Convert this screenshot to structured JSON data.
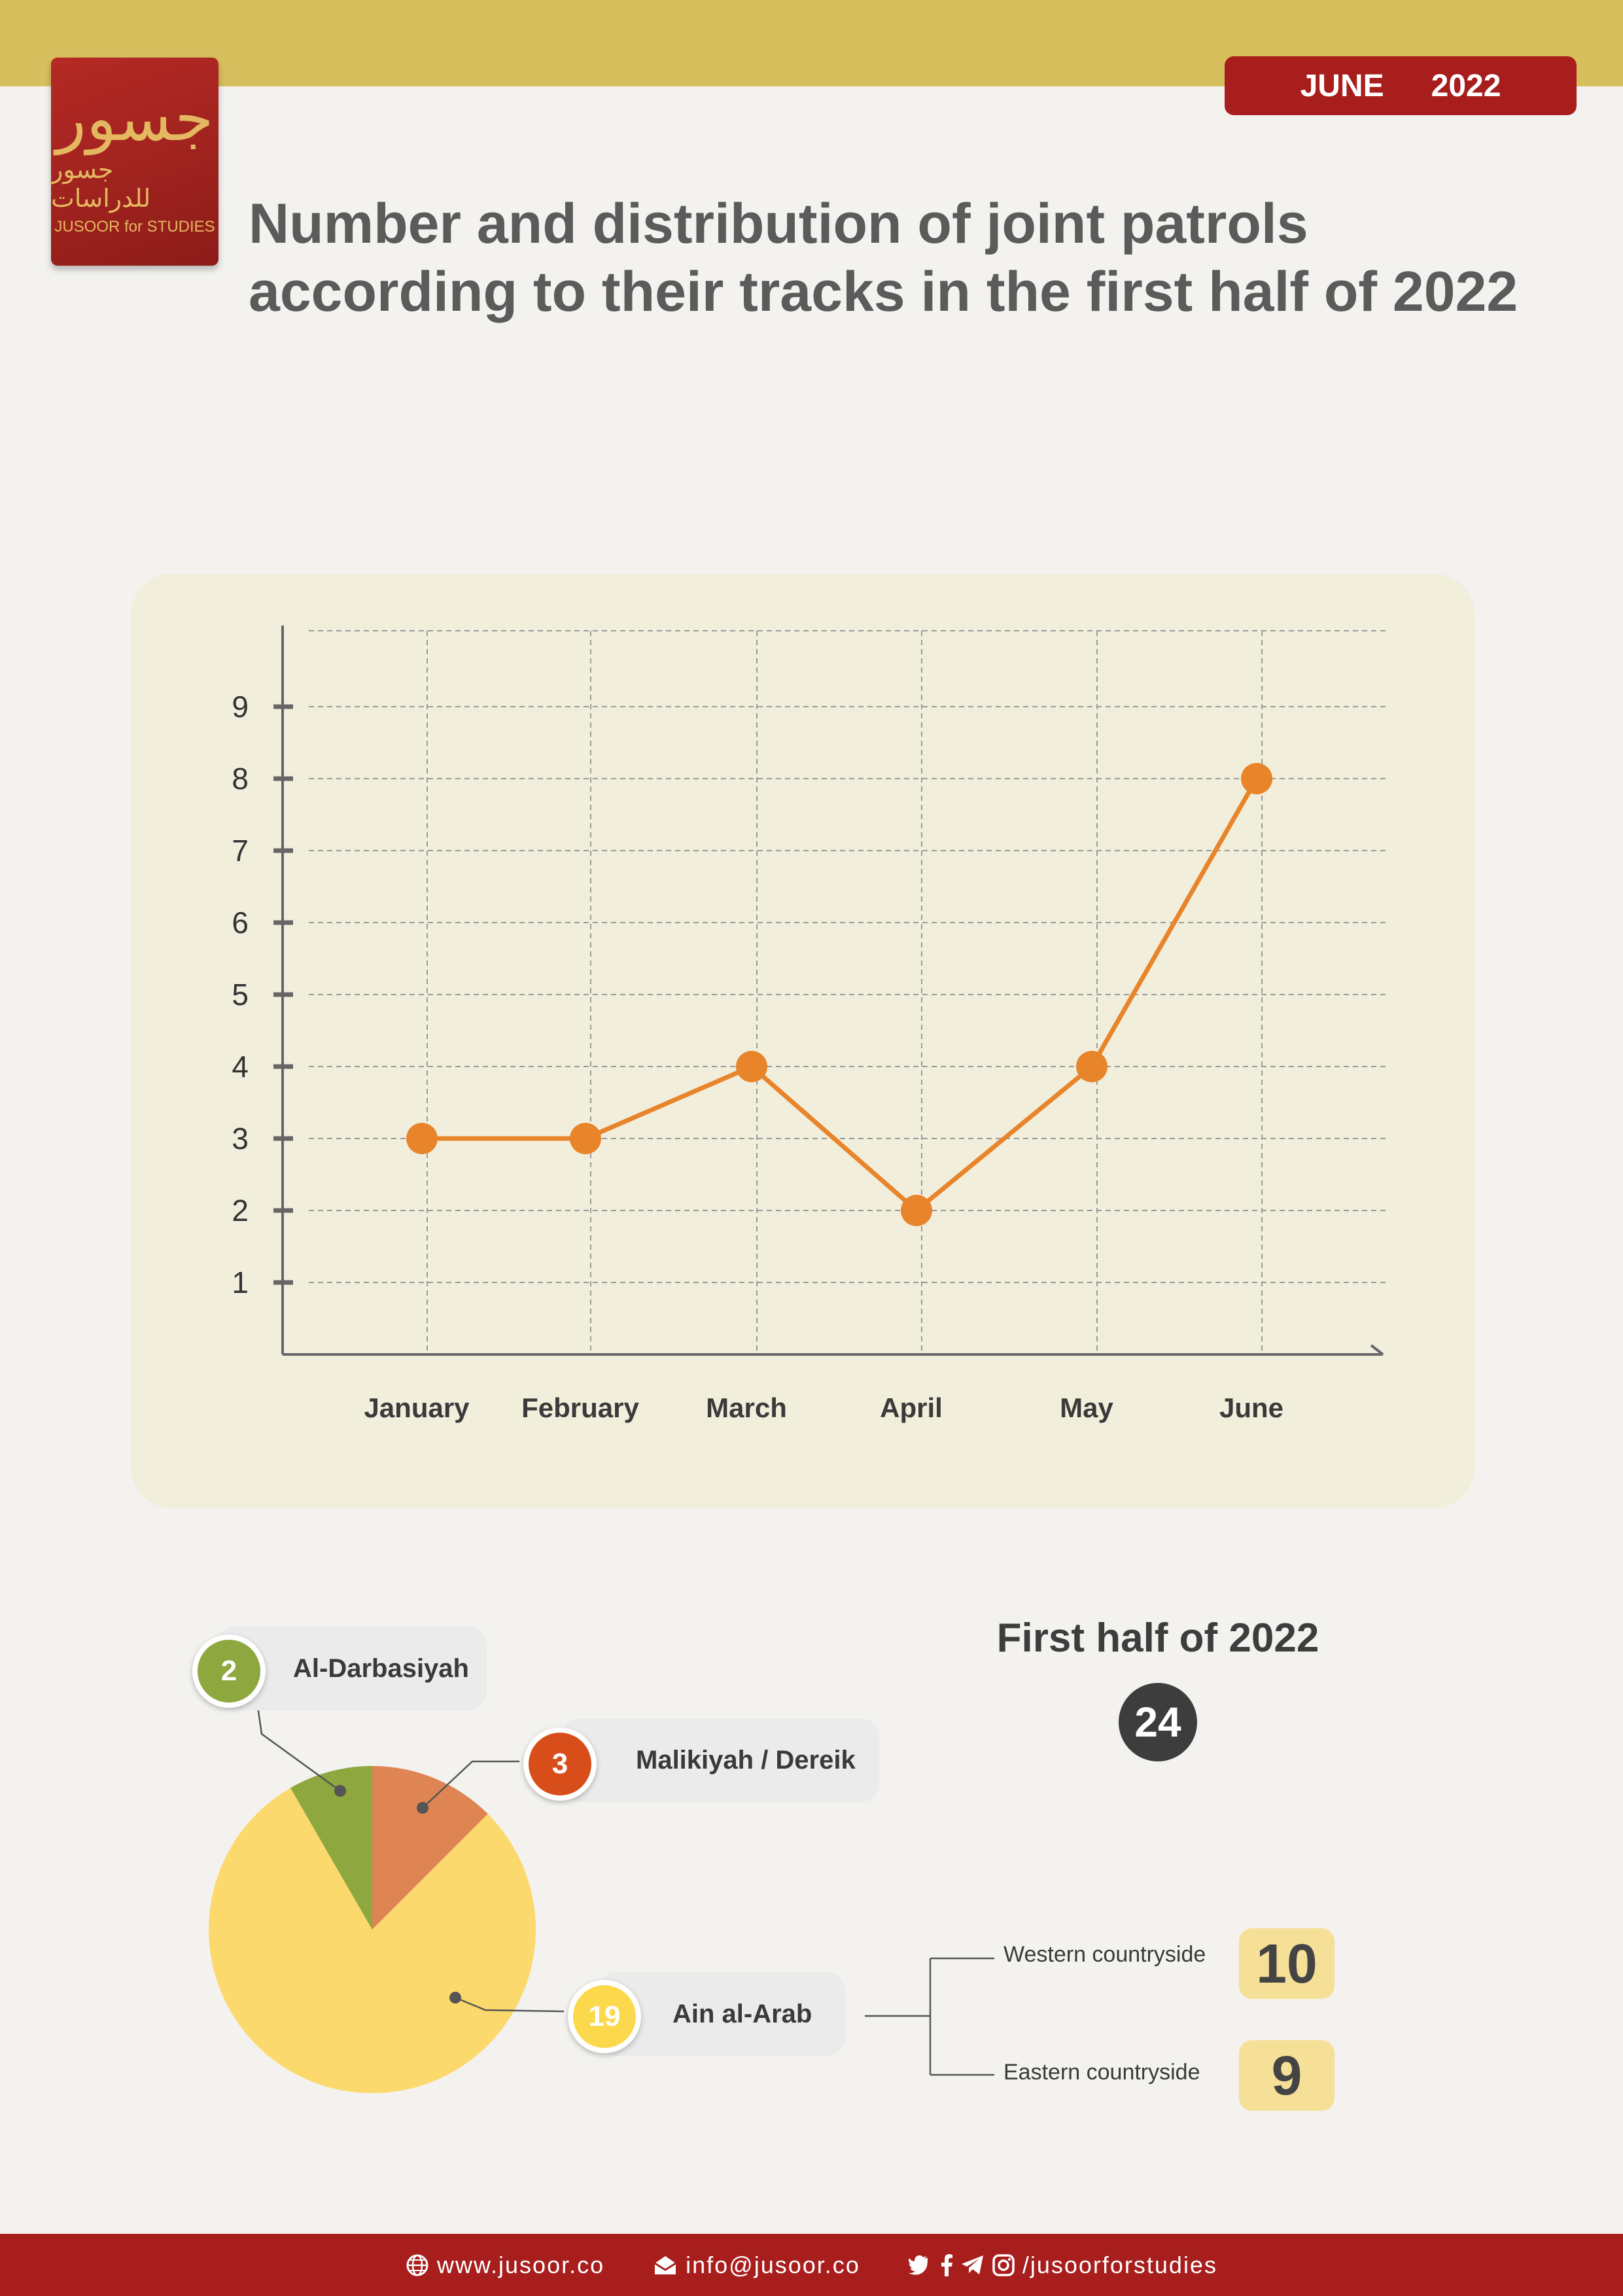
{
  "header": {
    "month": "JUNE",
    "year": "2022",
    "colors": {
      "band": "#d8bf5e",
      "accent": "#a81e1d"
    }
  },
  "logo": {
    "arabic": "جسور",
    "arabic_sub": "جسور للدراسات",
    "english": "JUSOOR for STUDIES"
  },
  "title": "Number and distribution of joint patrols according to their tracks in the first half of 2022",
  "chart_data": [
    {
      "type": "line",
      "categories": [
        "January",
        "February",
        "March",
        "April",
        "May",
        "June"
      ],
      "series": [
        {
          "values": [
            3,
            3,
            4,
            2,
            4,
            8
          ]
        }
      ],
      "yticks": [
        "1",
        "2",
        "3",
        "4",
        "5",
        "6",
        "7",
        "8",
        "9"
      ],
      "ylim": [
        0,
        10
      ],
      "grid": true,
      "color": "#e8842a"
    },
    {
      "type": "pie",
      "slices": [
        {
          "name": "Al-Darbasiyah",
          "value": 2,
          "color": "#8ea73f"
        },
        {
          "name": "Malikiyah / Dereik",
          "value": 3,
          "color": "#df8453"
        },
        {
          "name": "Ain al-Arab",
          "value": 19,
          "color": "#fcd96c"
        }
      ],
      "badge_colors": [
        "#8ea73f",
        "#d84e1a",
        "#fcd94c"
      ]
    }
  ],
  "summary": {
    "title": "First half of 2022",
    "total": "24"
  },
  "breakdown": {
    "items": [
      {
        "label": "Western countryside",
        "value": "10"
      },
      {
        "label": "Eastern countryside",
        "value": "9"
      }
    ]
  },
  "footer": {
    "website": "www.jusoor.co",
    "email": "info@jusoor.co",
    "social": "/jusoorforstudies",
    "icons": [
      "globe-icon",
      "mail-icon",
      "twitter-icon",
      "facebook-icon",
      "telegram-icon",
      "instagram-icon"
    ]
  }
}
